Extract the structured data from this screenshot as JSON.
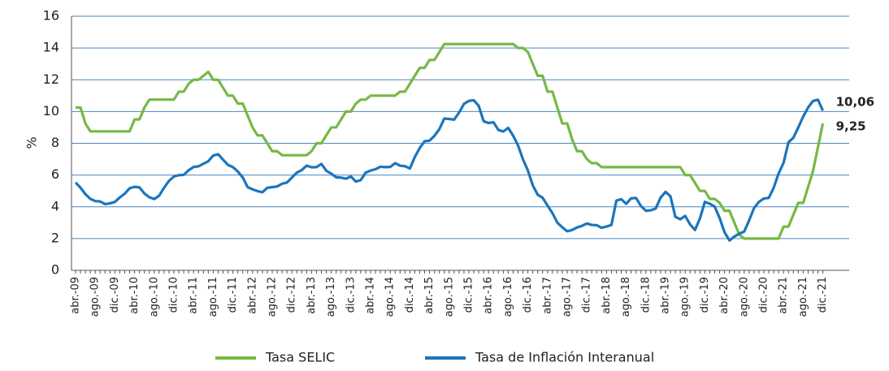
{
  "chart_data": {
    "type": "line",
    "y_label": "%",
    "ylim": [
      0,
      16
    ],
    "yticks": [
      0,
      2,
      4,
      6,
      8,
      10,
      12,
      14,
      16
    ],
    "grid": true,
    "legend": "bottom",
    "categories": [
      "abr.-09",
      null,
      null,
      null,
      "ago.-09",
      null,
      null,
      null,
      "dic.-09",
      null,
      null,
      null,
      "abr.-10",
      null,
      null,
      null,
      "ago.-10",
      null,
      null,
      null,
      "dic.-10",
      null,
      null,
      null,
      "abr.-11",
      null,
      null,
      null,
      "ago.-11",
      null,
      null,
      null,
      "dic.-11",
      null,
      null,
      null,
      "abr.-12",
      null,
      null,
      null,
      "ago.-12",
      null,
      null,
      null,
      "dic.-12",
      null,
      null,
      null,
      "abr.-13",
      null,
      null,
      null,
      "ago.-13",
      null,
      null,
      null,
      "dic.-13",
      null,
      null,
      null,
      "abr.-14",
      null,
      null,
      null,
      "ago.-14",
      null,
      null,
      null,
      "dic.-14",
      null,
      null,
      null,
      "abr.-15",
      null,
      null,
      null,
      "ago.-15",
      null,
      null,
      null,
      "dic.-15",
      null,
      null,
      null,
      "abr.-16",
      null,
      null,
      null,
      "ago.-16",
      null,
      null,
      null,
      "dic.-16",
      null,
      null,
      null,
      "abr.-17",
      null,
      null,
      null,
      "ago.-17",
      null,
      null,
      null,
      "dic.-17",
      null,
      null,
      null,
      "abr.-18",
      null,
      null,
      null,
      "ago.-18",
      null,
      null,
      null,
      "dic.-18",
      null,
      null,
      null,
      "abr.-19",
      null,
      null,
      null,
      "ago.-19",
      null,
      null,
      null,
      "dic.-19",
      null,
      null,
      null,
      "abr.-20",
      null,
      null,
      null,
      "ago.-20",
      null,
      null,
      null,
      "dic.-20",
      null,
      null,
      null,
      "abr.-21",
      null,
      null,
      null,
      "ago.-21",
      null,
      null,
      null,
      "dic.-21"
    ],
    "series": [
      {
        "name": "Tasa SELIC",
        "color": "#77b845",
        "end_label": "9,25",
        "values": [
          10.25,
          10.25,
          9.25,
          8.75,
          8.75,
          8.75,
          8.75,
          8.75,
          8.75,
          8.75,
          8.75,
          8.75,
          9.5,
          9.5,
          10.25,
          10.75,
          10.75,
          10.75,
          10.75,
          10.75,
          10.75,
          11.25,
          11.25,
          11.75,
          12,
          12,
          12.25,
          12.5,
          12,
          12,
          11.5,
          11,
          11,
          10.5,
          10.5,
          9.75,
          9,
          8.5,
          8.5,
          8,
          7.5,
          7.5,
          7.25,
          7.25,
          7.25,
          7.25,
          7.25,
          7.25,
          7.5,
          8,
          8,
          8.5,
          9,
          9,
          9.5,
          10,
          10,
          10.5,
          10.75,
          10.75,
          11,
          11,
          11,
          11,
          11,
          11,
          11.25,
          11.25,
          11.75,
          12.25,
          12.75,
          12.75,
          13.25,
          13.25,
          13.75,
          14.25,
          14.25,
          14.25,
          14.25,
          14.25,
          14.25,
          14.25,
          14.25,
          14.25,
          14.25,
          14.25,
          14.25,
          14.25,
          14.25,
          14.25,
          14,
          14,
          13.75,
          13,
          12.25,
          12.25,
          11.25,
          11.25,
          10.25,
          9.25,
          9.25,
          8.25,
          7.5,
          7.5,
          7,
          6.75,
          6.75,
          6.5,
          6.5,
          6.5,
          6.5,
          6.5,
          6.5,
          6.5,
          6.5,
          6.5,
          6.5,
          6.5,
          6.5,
          6.5,
          6.5,
          6.5,
          6.5,
          6.5,
          6,
          6,
          5.5,
          5,
          5,
          4.5,
          4.5,
          4.25,
          3.75,
          3.75,
          3,
          2.25,
          2,
          2,
          2,
          2,
          2,
          2,
          2,
          2,
          2.75,
          2.75,
          3.5,
          4.25,
          4.25,
          5.25,
          6.25,
          7.75,
          9.25
        ]
      },
      {
        "name": "Tasa de Inflación Interanual",
        "color": "#1b75bc",
        "end_label": "10,06",
        "values": [
          5.53,
          5.2,
          4.8,
          4.5,
          4.36,
          4.34,
          4.17,
          4.22,
          4.31,
          4.59,
          4.83,
          5.17,
          5.26,
          5.22,
          4.84,
          4.6,
          4.49,
          4.7,
          5.2,
          5.63,
          5.91,
          5.99,
          6.01,
          6.3,
          6.51,
          6.55,
          6.71,
          6.87,
          7.23,
          7.31,
          6.97,
          6.64,
          6.5,
          6.22,
          5.85,
          5.24,
          5.1,
          4.99,
          4.92,
          5.2,
          5.24,
          5.28,
          5.45,
          5.53,
          5.84,
          6.15,
          6.31,
          6.59,
          6.49,
          6.5,
          6.7,
          6.27,
          6.09,
          5.86,
          5.84,
          5.77,
          5.91,
          5.59,
          5.68,
          6.15,
          6.28,
          6.37,
          6.52,
          6.5,
          6.51,
          6.75,
          6.59,
          6.56,
          6.41,
          7.14,
          7.7,
          8.13,
          8.17,
          8.47,
          8.89,
          9.56,
          9.53,
          9.49,
          9.93,
          10.48,
          10.67,
          10.71,
          10.36,
          9.39,
          9.28,
          9.32,
          8.84,
          8.74,
          8.97,
          8.48,
          7.87,
          6.99,
          6.29,
          5.35,
          4.76,
          4.57,
          4.08,
          3.6,
          3.0,
          2.71,
          2.46,
          2.54,
          2.7,
          2.8,
          2.95,
          2.86,
          2.84,
          2.68,
          2.76,
          2.86,
          4.39,
          4.48,
          4.19,
          4.53,
          4.56,
          4.05,
          3.75,
          3.78,
          3.89,
          4.58,
          4.94,
          4.66,
          3.37,
          3.22,
          3.43,
          2.89,
          2.54,
          3.27,
          4.31,
          4.19,
          4.01,
          3.3,
          2.4,
          1.88,
          2.13,
          2.31,
          2.44,
          3.14,
          3.92,
          4.31,
          4.52,
          4.56,
          5.2,
          6.1,
          6.76,
          8.06,
          8.35,
          8.99,
          9.68,
          10.25,
          10.67,
          10.74,
          10.06
        ]
      }
    ]
  }
}
